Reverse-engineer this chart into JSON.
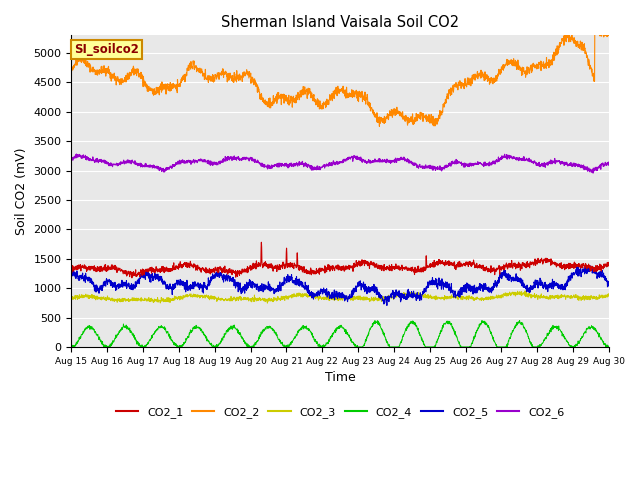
{
  "title": "Sherman Island Vaisala Soil CO2",
  "ylabel": "Soil CO2 (mV)",
  "xlabel": "Time",
  "bg_color": "#e8e8e8",
  "fig_bg_color": "#ffffff",
  "label_box_text": "SI_soilco2",
  "series": {
    "CO2_1": {
      "color": "#cc0000"
    },
    "CO2_2": {
      "color": "#ff8800"
    },
    "CO2_3": {
      "color": "#cccc00"
    },
    "CO2_4": {
      "color": "#00cc00"
    },
    "CO2_5": {
      "color": "#0000cc"
    },
    "CO2_6": {
      "color": "#9900cc"
    }
  },
  "ylim": [
    0,
    5300
  ],
  "yticks": [
    0,
    500,
    1000,
    1500,
    2000,
    2500,
    3000,
    3500,
    4000,
    4500,
    5000
  ],
  "xtick_labels": [
    "Aug 15",
    "Aug 16",
    "Aug 17",
    "Aug 18",
    "Aug 19",
    "Aug 20",
    "Aug 21",
    "Aug 22",
    "Aug 23",
    "Aug 24",
    "Aug 25",
    "Aug 26",
    "Aug 27",
    "Aug 28",
    "Aug 29",
    "Aug 30"
  ],
  "n_points": 2160,
  "days": 15
}
